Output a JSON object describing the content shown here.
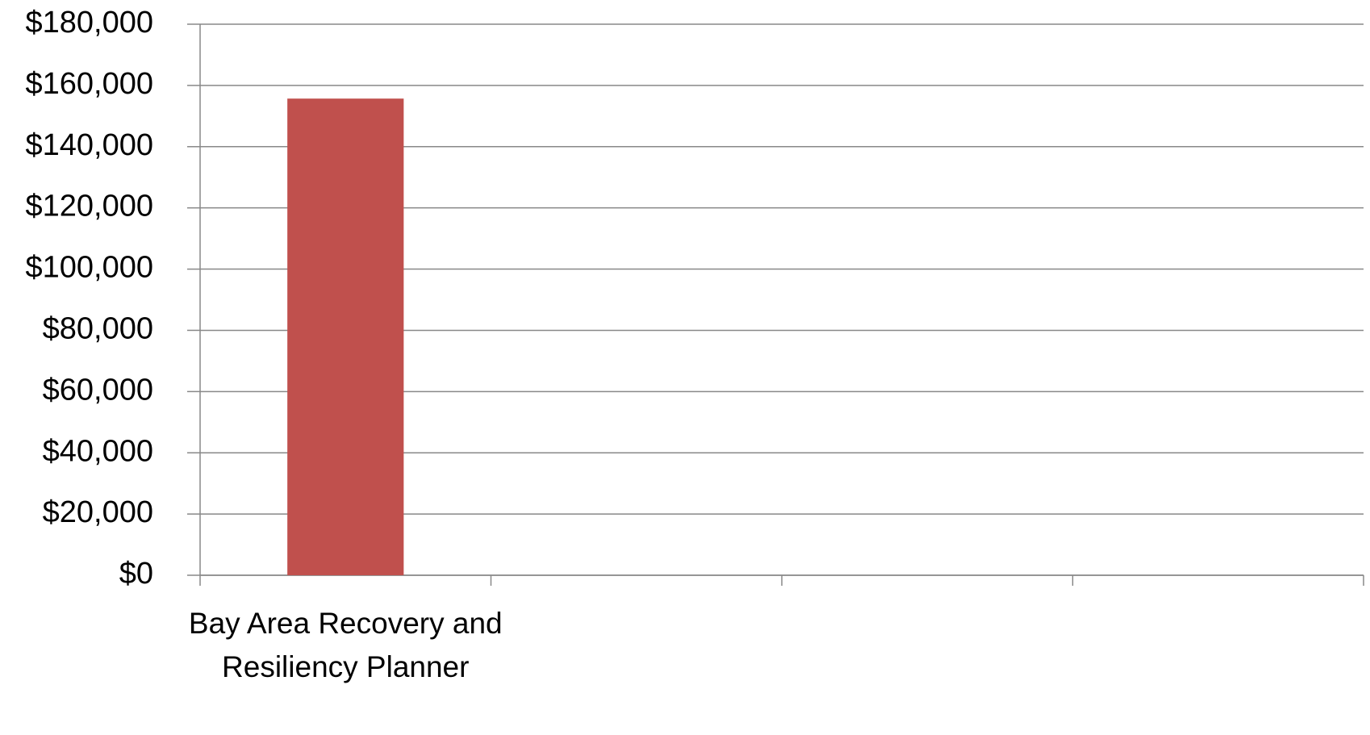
{
  "chart_data": {
    "type": "bar",
    "categories": [
      "Bay Area Recovery and Resiliency Planner",
      null,
      null,
      null
    ],
    "values": [
      155700,
      null,
      null,
      null
    ],
    "color": "#c0504d",
    "ylim": [
      0,
      180000
    ],
    "yticks": [
      {
        "value": 0,
        "label": "$0"
      },
      {
        "value": 20000,
        "label": "$20,000"
      },
      {
        "value": 40000,
        "label": "$40,000"
      },
      {
        "value": 60000,
        "label": "$60,000"
      },
      {
        "value": 80000,
        "label": "$80,000"
      },
      {
        "value": 100000,
        "label": "$100,000"
      },
      {
        "value": 120000,
        "label": "$120,000"
      },
      {
        "value": 140000,
        "label": "$140,000"
      },
      {
        "value": 160000,
        "label": "$160,000"
      },
      {
        "value": 180000,
        "label": "$180,000"
      }
    ],
    "grid": true
  }
}
